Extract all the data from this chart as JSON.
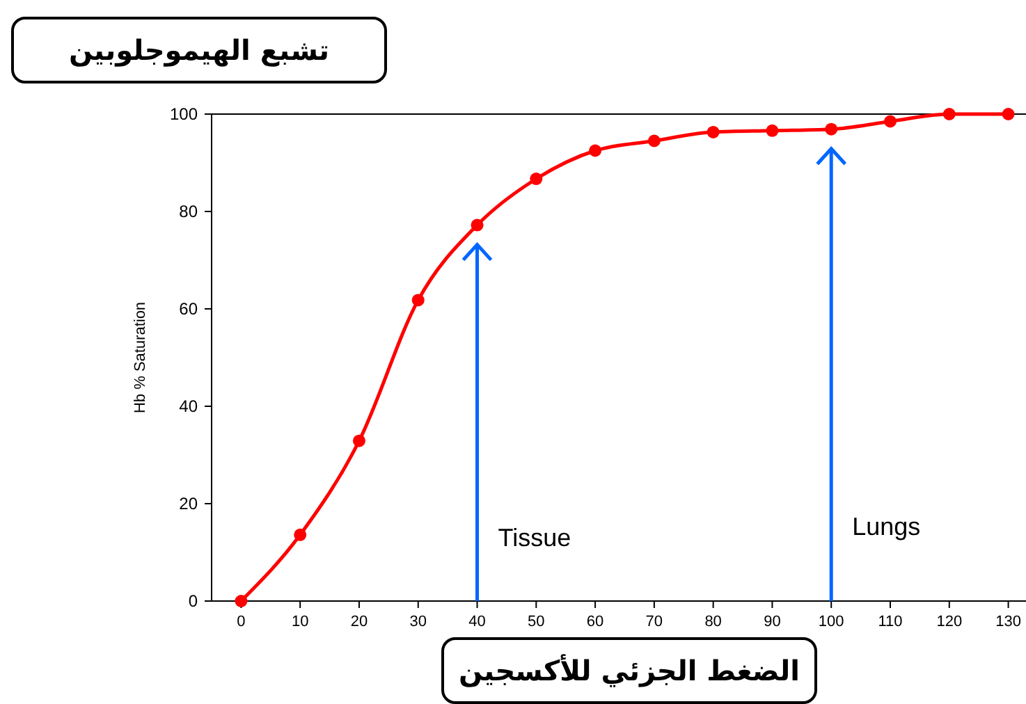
{
  "chart_data": {
    "type": "line",
    "title": "تشبع الهيموجلوبين",
    "xlabel": "الضغط الجزئي للأكسجين",
    "ylabel": "Hb % Saturation",
    "x": [
      0,
      10,
      20,
      30,
      40,
      50,
      60,
      70,
      80,
      90,
      100,
      110,
      120,
      130
    ],
    "series": [
      {
        "color": "#ff0000",
        "values": [
          0,
          13.6,
          32.9,
          61.8,
          77.2,
          86.7,
          92.5,
          94.5,
          96.3,
          96.6,
          96.9,
          98.5,
          100,
          100
        ]
      }
    ],
    "xlim": [
      -5,
      133
    ],
    "ylim": [
      0,
      100
    ],
    "xticks": [
      0,
      10,
      20,
      30,
      40,
      50,
      60,
      70,
      80,
      90,
      100,
      110,
      120,
      130
    ],
    "yticks": [
      0,
      20,
      40,
      60,
      80,
      100
    ],
    "marker": "circle",
    "line_style": "solid",
    "ref_lines": [
      {
        "axis": "x",
        "value": 40,
        "label": "Tissue",
        "color": "#0066ff",
        "line_style": "solid"
      },
      {
        "axis": "x",
        "value": 100,
        "label": "Lungs",
        "color": "#0066ff",
        "line_style": "solid"
      }
    ]
  }
}
